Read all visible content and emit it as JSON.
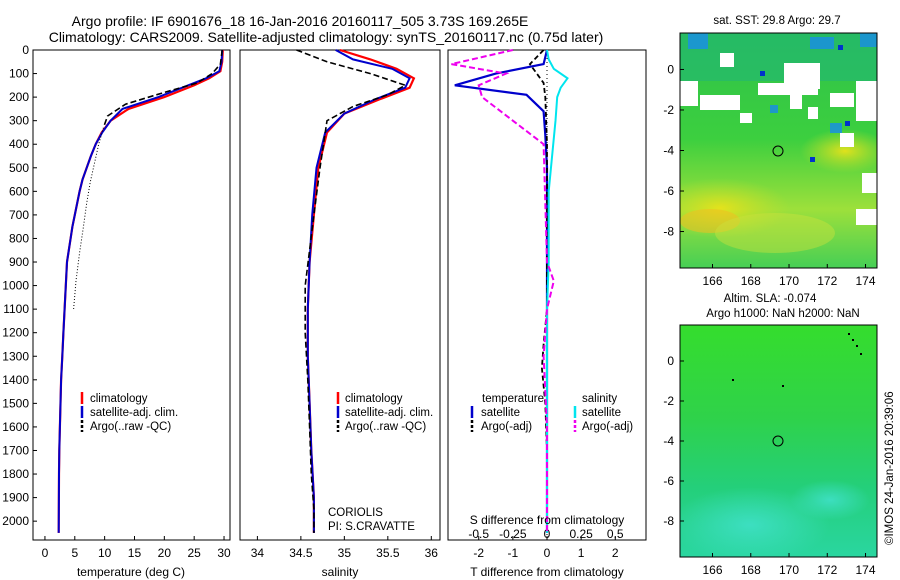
{
  "title_line1": "Argo profile: IF 6901676_18 16-Jan-2016 20160117_505 3.73S 169.265E",
  "title_line2": "Climatology: CARS2009. Satellite-adjusted climatology: synTS_20160117.nc (0.75d later)",
  "colors": {
    "climatology": "#ff0000",
    "satellite": "#0000cc",
    "argo": "#000000",
    "salinity_sat": "#00e5ee",
    "argo_adj": "#ee00ee"
  },
  "depth_ticks": [
    "0",
    "100",
    "200",
    "300",
    "400",
    "500",
    "600",
    "700",
    "800",
    "900",
    "1000",
    "1100",
    "1200",
    "1300",
    "1400",
    "1500",
    "1600",
    "1700",
    "1800",
    "1900",
    "2000"
  ],
  "temp_panel": {
    "xlabel": "temperature (deg C)",
    "xticks": [
      "0",
      "5",
      "10",
      "15",
      "20",
      "25",
      "30"
    ],
    "legend": [
      "climatology",
      "satellite-adj. clim.",
      "Argo(..raw -QC)"
    ]
  },
  "sal_panel": {
    "xlabel": "salinity",
    "xticks": [
      "34",
      "34.5",
      "35",
      "35.5",
      "36"
    ],
    "legend": [
      "climatology",
      "satellite-adj. clim.",
      "Argo(..raw -QC)"
    ],
    "note1": "CORIOLIS",
    "note2": "PI: S.CRAVATTE"
  },
  "diff_panel": {
    "xlabel": "T difference from climatology",
    "top_label": "S difference from climatology",
    "t_ticks": [
      "-2",
      "-1",
      "0",
      "1",
      "2"
    ],
    "s_ticks": [
      "-0.5",
      "-0.25",
      "0",
      "0.25",
      "0.5"
    ],
    "legend_head_t": "temperature",
    "legend_head_s": "salinity",
    "legend_t": [
      "satellite",
      "Argo(-adj)"
    ],
    "legend_s": [
      "satellite",
      "Argo(-adj)"
    ]
  },
  "map_top": {
    "title": "sat. SST: 29.8 Argo: 29.7",
    "xticks": [
      "166",
      "168",
      "170",
      "172",
      "174"
    ],
    "yticks": [
      "0",
      "-2",
      "-4",
      "-6",
      "-8"
    ]
  },
  "map_bottom": {
    "title1": "Altim. SLA: -0.074",
    "title2": "Argo h1000: NaN h2000: NaN",
    "xticks": [
      "166",
      "168",
      "170",
      "172",
      "174"
    ],
    "yticks": [
      "0",
      "-2",
      "-4",
      "-6",
      "-8"
    ]
  },
  "stamp": "©IMOS 24-Jan-2016 20:39:06",
  "chart_data": [
    {
      "type": "line",
      "name": "temperature profile",
      "xlabel": "temperature (deg C)",
      "ylabel": "",
      "xlim": [
        -2,
        31
      ],
      "ylim": [
        2080,
        0
      ],
      "series": [
        {
          "name": "climatology",
          "x": [
            29.8,
            29.7,
            29.4,
            27.5,
            25,
            20,
            14,
            11,
            9.5,
            8.5,
            7.7,
            7,
            6.3,
            5.8,
            5.4,
            5,
            4.6,
            4.3,
            4,
            3.7,
            3.5,
            3.3,
            3.1,
            2.9,
            2.7,
            2.6,
            2.5,
            2.4,
            2.35,
            2.3
          ],
          "y": [
            0,
            50,
            90,
            120,
            150,
            200,
            250,
            300,
            350,
            400,
            450,
            500,
            550,
            600,
            650,
            700,
            750,
            800,
            850,
            900,
            1000,
            1100,
            1200,
            1300,
            1400,
            1500,
            1600,
            1700,
            1800,
            2050
          ]
        },
        {
          "name": "satellite-adj. clim.",
          "x": [
            29.7,
            29.6,
            29.2,
            27,
            24,
            19,
            13,
            11,
            9.6,
            8.5,
            7.7,
            7,
            6.3,
            5.8,
            5.4,
            5,
            4.6,
            4.3,
            4,
            3.7,
            3.5,
            3.3,
            3.1,
            2.9,
            2.7,
            2.6,
            2.5,
            2.4,
            2.35,
            2.3
          ],
          "y": [
            0,
            50,
            90,
            120,
            150,
            200,
            250,
            300,
            350,
            400,
            450,
            500,
            550,
            600,
            650,
            700,
            750,
            800,
            850,
            900,
            1000,
            1100,
            1200,
            1300,
            1400,
            1500,
            1600,
            1700,
            1800,
            2050
          ]
        },
        {
          "name": "Argo(..raw -QC)",
          "x": [
            29.7,
            29.4,
            28,
            25.5,
            20,
            13.5,
            10.5,
            9.8
          ],
          "y": [
            0,
            60,
            100,
            140,
            180,
            230,
            280,
            330
          ]
        },
        {
          "name": "Argo dotted",
          "x": [
            9.8,
            9,
            8.3,
            7.6,
            7,
            6.4,
            5.8,
            5.2,
            4.8
          ],
          "y": [
            330,
            400,
            480,
            560,
            650,
            760,
            860,
            980,
            1100
          ]
        }
      ]
    },
    {
      "type": "line",
      "name": "salinity profile",
      "xlabel": "salinity",
      "ylabel": "",
      "xlim": [
        33.8,
        36.1
      ],
      "ylim": [
        2080,
        0
      ],
      "series": [
        {
          "name": "climatology",
          "x": [
            34.95,
            35.3,
            35.6,
            35.8,
            35.75,
            35.4,
            35,
            34.8,
            34.7,
            34.65,
            34.6,
            34.58,
            34.58,
            34.6,
            34.62,
            34.65,
            34.65
          ],
          "y": [
            0,
            40,
            80,
            120,
            160,
            210,
            270,
            350,
            500,
            700,
            900,
            1100,
            1300,
            1500,
            1700,
            1900,
            2050
          ]
        },
        {
          "name": "satellite-adj. clim.",
          "x": [
            34.9,
            35.1,
            35.55,
            35.75,
            35.7,
            35.35,
            35,
            34.78,
            34.68,
            34.63,
            34.6,
            34.58,
            34.58,
            34.6,
            34.62,
            34.65,
            34.65
          ],
          "y": [
            0,
            40,
            80,
            120,
            160,
            210,
            270,
            350,
            500,
            700,
            900,
            1100,
            1300,
            1500,
            1700,
            1900,
            2050
          ]
        },
        {
          "name": "Argo(..raw -QC)",
          "x": [
            34.45,
            34.8,
            35.3,
            35.7,
            35.5,
            35.1,
            34.8,
            34.72,
            34.65,
            34.6,
            34.55,
            34.55,
            34.58,
            34.6,
            34.62,
            34.65,
            34.65
          ],
          "y": [
            0,
            50,
            100,
            150,
            190,
            240,
            300,
            500,
            700,
            850,
            1000,
            1200,
            1400,
            1600,
            1800,
            1950,
            2050
          ]
        }
      ]
    },
    {
      "type": "line",
      "name": "difference from climatology",
      "xlabel": "T difference from climatology",
      "ylabel": "",
      "xlim": [
        -2.9,
        2.9
      ],
      "ylim": [
        2080,
        0
      ],
      "series": [
        {
          "name": "temperature satellite",
          "x": [
            0,
            -0.1,
            -1.5,
            -2.7,
            -0.6,
            -0.1,
            -0.05,
            0,
            0,
            0,
            0,
            0,
            0
          ],
          "y": [
            0,
            60,
            100,
            150,
            190,
            260,
            360,
            500,
            800,
            1100,
            1500,
            1800,
            2050
          ]
        },
        {
          "name": "temperature Argo(-adj)",
          "x": [
            -0.1,
            -0.5,
            -0.3,
            -0.1,
            -0.05,
            0,
            0,
            -0.1,
            -0.15,
            -0.05,
            0,
            0
          ],
          "y": [
            0,
            60,
            100,
            140,
            200,
            400,
            1100,
            1250,
            1350,
            1500,
            1700,
            2050
          ]
        },
        {
          "name": "salinity satellite",
          "x": [
            0,
            0.05,
            0.2,
            0.6,
            0.4,
            0.3,
            0.25,
            0.05,
            0.05,
            0,
            0,
            0,
            0
          ],
          "y": [
            0,
            40,
            80,
            120,
            160,
            200,
            300,
            600,
            900,
            1100,
            1500,
            1800,
            2050
          ]
        },
        {
          "name": "salinity Argo(-adj)",
          "x": [
            -1,
            -2.8,
            -1.2,
            -2,
            -1.9,
            -0.1,
            0,
            0.2,
            0,
            -0.1,
            0,
            0
          ],
          "y": [
            0,
            60,
            100,
            150,
            200,
            400,
            900,
            980,
            1100,
            1300,
            1600,
            2050
          ]
        }
      ]
    }
  ]
}
